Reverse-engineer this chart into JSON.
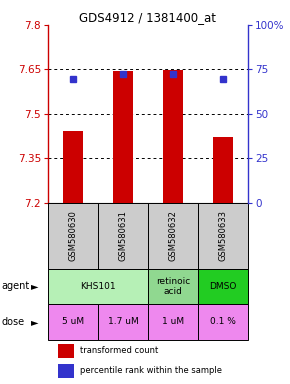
{
  "title": "GDS4912 / 1381400_at",
  "samples": [
    "GSM580630",
    "GSM580631",
    "GSM580632",
    "GSM580633"
  ],
  "bar_values": [
    7.443,
    7.644,
    7.648,
    7.423
  ],
  "blue_square_values": [
    7.617,
    7.633,
    7.634,
    7.618
  ],
  "ylim_left": [
    7.2,
    7.8
  ],
  "left_ticks": [
    7.2,
    7.35,
    7.5,
    7.65,
    7.8
  ],
  "right_ticks": [
    0,
    25,
    50,
    75,
    100
  ],
  "bar_color": "#cc0000",
  "blue_color": "#3333cc",
  "bar_bottom": 7.2,
  "agent_configs": [
    [
      0,
      1,
      "KHS101",
      "#b6f0b6"
    ],
    [
      2,
      2,
      "retinoic\nacid",
      "#90d890"
    ],
    [
      3,
      3,
      "DMSO",
      "#22cc22"
    ]
  ],
  "doses": [
    "5 uM",
    "1.7 uM",
    "1 uM",
    "0.1 %"
  ],
  "dose_color": "#ee88ee",
  "sample_bg": "#cccccc",
  "legend_red_label": "transformed count",
  "legend_blue_label": "percentile rank within the sample",
  "bar_width": 0.4
}
